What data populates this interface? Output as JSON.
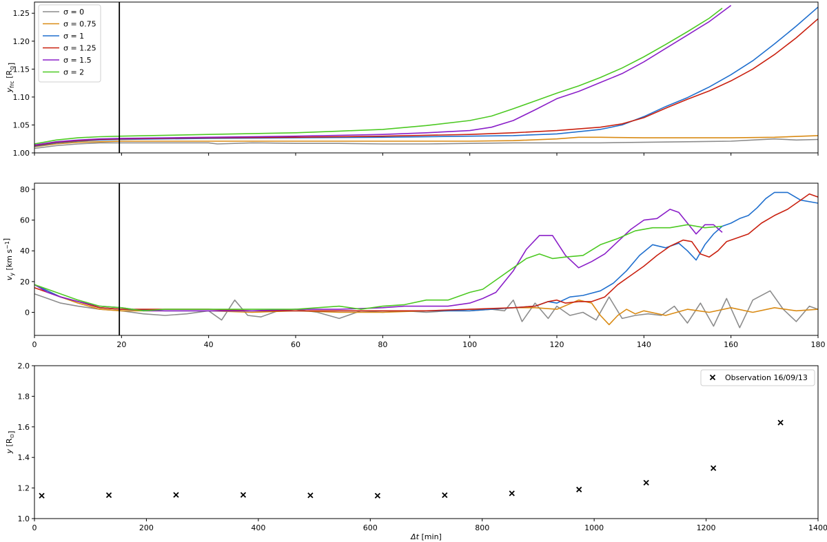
{
  "chart_data": [
    {
      "type": "line",
      "ylabel_main": "y",
      "ylabel_sub": "frc",
      "ylabel_unit": "[R",
      "ylabel_unit_end": "]",
      "xlim": [
        0,
        180
      ],
      "ylim": [
        1.0,
        1.27
      ],
      "xticks": [
        0,
        20,
        40,
        60,
        80,
        100,
        120,
        140,
        160,
        180
      ],
      "yticks": [
        1.0,
        1.05,
        1.1,
        1.15,
        1.2,
        1.25
      ],
      "ytick_labels": [
        "1.00",
        "1.05",
        "1.10",
        "1.15",
        "1.20",
        "1.25"
      ],
      "vline_x": 19.5,
      "legend_position": "top-left",
      "series": [
        {
          "name": "σ = 0",
          "color": "#8c8c8c",
          "x": [
            0,
            5,
            10,
            15,
            20,
            30,
            40,
            42,
            50,
            60,
            70,
            80,
            90,
            100,
            110,
            120,
            130,
            140,
            150,
            160,
            165,
            170,
            175,
            180
          ],
          "y": [
            1.008,
            1.013,
            1.016,
            1.018,
            1.018,
            1.018,
            1.018,
            1.016,
            1.018,
            1.017,
            1.017,
            1.016,
            1.016,
            1.017,
            1.018,
            1.018,
            1.018,
            1.019,
            1.02,
            1.021,
            1.023,
            1.025,
            1.023,
            1.024
          ]
        },
        {
          "name": "σ = 0.75",
          "color": "#d98a13",
          "x": [
            0,
            5,
            10,
            15,
            20,
            30,
            40,
            50,
            60,
            70,
            80,
            90,
            100,
            110,
            120,
            125,
            130,
            140,
            150,
            160,
            170,
            180
          ],
          "y": [
            1.011,
            1.016,
            1.019,
            1.02,
            1.021,
            1.021,
            1.021,
            1.021,
            1.021,
            1.021,
            1.021,
            1.021,
            1.021,
            1.022,
            1.025,
            1.028,
            1.028,
            1.027,
            1.027,
            1.027,
            1.028,
            1.031
          ]
        },
        {
          "name": "σ = 1",
          "color": "#1f6fce",
          "x": [
            0,
            5,
            10,
            15,
            20,
            40,
            60,
            80,
            100,
            110,
            120,
            130,
            135,
            140,
            145,
            150,
            155,
            160,
            165,
            170,
            175,
            180
          ],
          "y": [
            1.012,
            1.018,
            1.021,
            1.023,
            1.024,
            1.026,
            1.027,
            1.028,
            1.03,
            1.031,
            1.034,
            1.042,
            1.05,
            1.065,
            1.083,
            1.099,
            1.118,
            1.14,
            1.165,
            1.195,
            1.227,
            1.261
          ]
        },
        {
          "name": "σ = 1.25",
          "color": "#c9200f",
          "x": [
            0,
            5,
            10,
            15,
            20,
            40,
            60,
            80,
            100,
            110,
            120,
            130,
            135,
            140,
            145,
            150,
            155,
            160,
            165,
            170,
            175,
            180
          ],
          "y": [
            1.013,
            1.019,
            1.022,
            1.024,
            1.025,
            1.027,
            1.028,
            1.03,
            1.033,
            1.036,
            1.04,
            1.046,
            1.052,
            1.063,
            1.08,
            1.096,
            1.111,
            1.129,
            1.15,
            1.176,
            1.206,
            1.24
          ]
        },
        {
          "name": "σ = 1.5",
          "color": "#8a1ec8",
          "x": [
            0,
            5,
            10,
            15,
            20,
            40,
            60,
            80,
            90,
            100,
            105,
            110,
            115,
            120,
            125,
            130,
            135,
            140,
            145,
            150,
            155,
            160
          ],
          "y": [
            1.014,
            1.02,
            1.023,
            1.025,
            1.026,
            1.028,
            1.03,
            1.033,
            1.036,
            1.04,
            1.046,
            1.058,
            1.077,
            1.097,
            1.11,
            1.126,
            1.142,
            1.163,
            1.187,
            1.211,
            1.235,
            1.264
          ]
        },
        {
          "name": "σ = 2",
          "color": "#4cc922",
          "x": [
            0,
            5,
            10,
            15,
            20,
            40,
            60,
            70,
            80,
            90,
            100,
            105,
            110,
            115,
            120,
            125,
            130,
            135,
            140,
            145,
            150,
            155,
            158
          ],
          "y": [
            1.016,
            1.023,
            1.027,
            1.029,
            1.03,
            1.033,
            1.036,
            1.039,
            1.042,
            1.049,
            1.058,
            1.066,
            1.079,
            1.093,
            1.107,
            1.12,
            1.135,
            1.152,
            1.172,
            1.194,
            1.217,
            1.241,
            1.259
          ]
        }
      ]
    },
    {
      "type": "line",
      "ylabel_main": "v",
      "ylabel_sub": "y",
      "ylabel_unit": "[km s",
      "ylabel_unit_sup": "−1",
      "ylabel_unit_end": "]",
      "xlim": [
        0,
        180
      ],
      "ylim": [
        -15,
        84
      ],
      "xticks": [
        0,
        20,
        40,
        60,
        80,
        100,
        120,
        140,
        160,
        180
      ],
      "yticks": [
        0,
        20,
        40,
        60,
        80
      ],
      "ytick_labels": [
        "0",
        "20",
        "40",
        "60",
        "80"
      ],
      "vline_x": 19.5,
      "series": [
        {
          "name": "σ = 0",
          "color": "#8c8c8c",
          "x": [
            0,
            3,
            6,
            10,
            15,
            20,
            25,
            30,
            35,
            40,
            43,
            46,
            49,
            52,
            56,
            60,
            65,
            70,
            75,
            80,
            85,
            90,
            95,
            100,
            105,
            108,
            110,
            112,
            115,
            118,
            120,
            123,
            126,
            129,
            132,
            135,
            138,
            141,
            144,
            147,
            150,
            153,
            156,
            159,
            162,
            165,
            169,
            172,
            175,
            178,
            180
          ],
          "y": [
            12,
            9,
            6,
            4,
            2,
            1,
            -1,
            -2,
            -1,
            1,
            -5,
            8,
            -2,
            -3,
            1,
            2,
            0,
            -4,
            1,
            0,
            1,
            0,
            1,
            2,
            2,
            1,
            8,
            -6,
            6,
            -4,
            4,
            -2,
            0,
            -5,
            10,
            -4,
            -2,
            -1,
            -2,
            4,
            -7,
            6,
            -9,
            9,
            -10,
            8,
            14,
            2,
            -6,
            4,
            2
          ]
        },
        {
          "name": "σ = 0.75",
          "color": "#d98a13",
          "x": [
            0,
            3,
            6,
            10,
            15,
            20,
            30,
            40,
            50,
            60,
            70,
            80,
            90,
            100,
            110,
            115,
            120,
            125,
            128,
            130,
            132,
            134,
            136,
            138,
            140,
            145,
            150,
            155,
            160,
            165,
            170,
            175,
            180
          ],
          "y": [
            18,
            14,
            10,
            6,
            2,
            1,
            1,
            1,
            0,
            1,
            0,
            0,
            1,
            1,
            3,
            3,
            2,
            8,
            6,
            -2,
            -8,
            -2,
            2,
            -1,
            1,
            -2,
            2,
            0,
            3,
            0,
            3,
            1,
            2
          ]
        },
        {
          "name": "σ = 1",
          "color": "#1f6fce",
          "x": [
            0,
            3,
            6,
            10,
            15,
            20,
            30,
            40,
            50,
            60,
            70,
            80,
            90,
            100,
            105,
            110,
            115,
            118,
            120,
            123,
            126,
            130,
            133,
            136,
            139,
            142,
            145,
            148,
            150,
            152,
            154,
            156,
            158,
            160,
            162,
            164,
            166,
            168,
            170,
            173,
            176,
            180
          ],
          "y": [
            18,
            14,
            10,
            7,
            3,
            2,
            1,
            1,
            1,
            1,
            1,
            1,
            1,
            1,
            2,
            3,
            4,
            7,
            6,
            10,
            11,
            14,
            19,
            27,
            37,
            44,
            42,
            45,
            40,
            34,
            44,
            51,
            56,
            58,
            61,
            63,
            68,
            74,
            78,
            78,
            73,
            71
          ]
        },
        {
          "name": "σ = 1.25",
          "color": "#c9200f",
          "x": [
            0,
            3,
            6,
            10,
            15,
            20,
            30,
            40,
            50,
            60,
            70,
            80,
            90,
            100,
            110,
            115,
            118,
            120,
            122,
            125,
            128,
            131,
            134,
            137,
            140,
            143,
            146,
            149,
            151,
            153,
            155,
            157,
            159,
            161,
            164,
            167,
            170,
            173,
            176,
            178,
            180
          ],
          "y": [
            16,
            13,
            10,
            7,
            3,
            2,
            2,
            2,
            1,
            1,
            1,
            1,
            1,
            2,
            3,
            4,
            7,
            8,
            6,
            7,
            7,
            10,
            18,
            24,
            30,
            37,
            43,
            47,
            46,
            38,
            36,
            40,
            46,
            48,
            51,
            58,
            63,
            67,
            73,
            77,
            75
          ]
        },
        {
          "name": "σ = 1.5",
          "color": "#8a1ec8",
          "x": [
            0,
            3,
            6,
            10,
            15,
            20,
            25,
            30,
            40,
            50,
            60,
            70,
            80,
            85,
            90,
            95,
            100,
            103,
            106,
            110,
            113,
            116,
            119,
            122,
            125,
            128,
            131,
            134,
            137,
            140,
            143,
            146,
            148,
            150,
            152,
            154,
            156,
            158
          ],
          "y": [
            18,
            13,
            10,
            7,
            4,
            3,
            1,
            1,
            1,
            1,
            2,
            2,
            3,
            4,
            4,
            4,
            6,
            9,
            13,
            27,
            41,
            50,
            50,
            37,
            29,
            33,
            38,
            46,
            54,
            60,
            61,
            67,
            65,
            58,
            51,
            57,
            57,
            52
          ]
        },
        {
          "name": "σ = 2",
          "color": "#4cc922",
          "x": [
            0,
            3,
            6,
            10,
            15,
            20,
            25,
            30,
            40,
            50,
            60,
            65,
            70,
            75,
            80,
            85,
            90,
            95,
            100,
            103,
            106,
            110,
            113,
            116,
            119,
            122,
            126,
            130,
            134,
            138,
            142,
            146,
            150,
            154,
            158
          ],
          "y": [
            18,
            15,
            12,
            8,
            4,
            3,
            1,
            2,
            2,
            2,
            2,
            3,
            4,
            2,
            4,
            5,
            8,
            8,
            13,
            15,
            21,
            29,
            35,
            38,
            35,
            36,
            37,
            44,
            48,
            53,
            55,
            55,
            57,
            55,
            56
          ]
        }
      ]
    },
    {
      "type": "scatter",
      "xlabel_main": "Δt",
      "xlabel_unit": "[min]",
      "ylabel_main": "y",
      "ylabel_unit": "[R",
      "ylabel_unit_end": "]",
      "xlim": [
        0,
        1400
      ],
      "ylim": [
        1.0,
        2.0
      ],
      "xticks": [
        0,
        200,
        400,
        600,
        800,
        1000,
        1200,
        1400
      ],
      "yticks": [
        1.0,
        1.2,
        1.4,
        1.6,
        1.8,
        2.0
      ],
      "ytick_labels": [
        "1.0",
        "1.2",
        "1.4",
        "1.6",
        "1.8",
        "2.0"
      ],
      "legend_position": "top-right",
      "series": [
        {
          "name": "Observation 16/09/13",
          "color": "#000000",
          "marker": "x",
          "x": [
            13,
            133,
            253,
            373,
            493,
            613,
            733,
            853,
            973,
            1093,
            1213,
            1333
          ],
          "y": [
            1.15,
            1.153,
            1.155,
            1.155,
            1.152,
            1.15,
            1.153,
            1.165,
            1.19,
            1.235,
            1.33,
            1.628
          ]
        }
      ]
    }
  ]
}
